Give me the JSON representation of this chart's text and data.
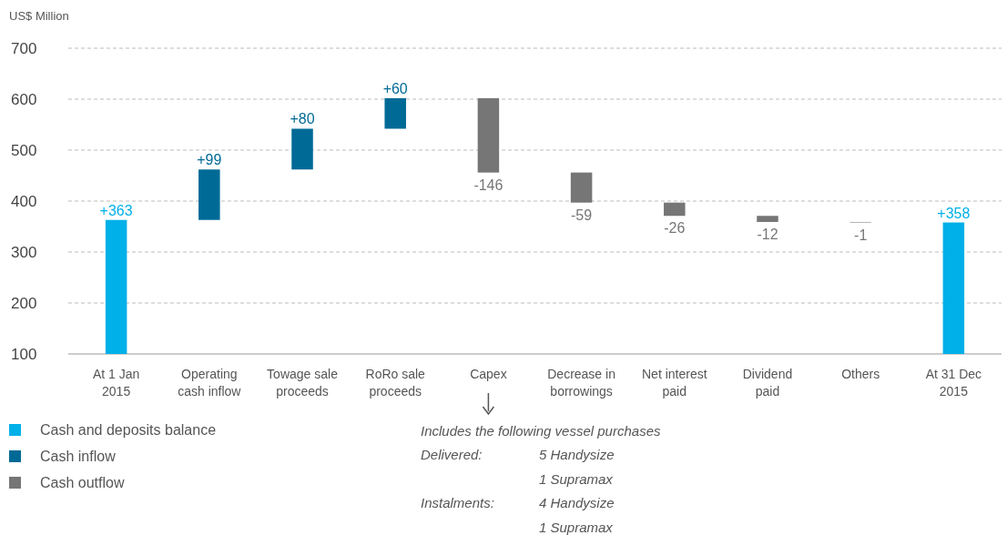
{
  "chart_data": {
    "type": "bar",
    "ylabel": "US$ Million",
    "categories": [
      "At 1 Jan 2015",
      "Operating cash inflow",
      "Towage sale proceeds",
      "RoRo sale proceeds",
      "Capex",
      "Decrease in borrowings",
      "Net interest paid",
      "Dividend paid",
      "Others",
      "At 31 Dec 2015"
    ],
    "series": [
      {
        "name": "Cash and deposits balance",
        "color": "#00b0e8",
        "values": [
          363,
          null,
          null,
          null,
          null,
          null,
          null,
          null,
          null,
          358
        ]
      },
      {
        "name": "Cash inflow",
        "color": "#006a96",
        "values": [
          null,
          99,
          80,
          60,
          null,
          null,
          null,
          null,
          null,
          null
        ],
        "base": [
          null,
          363,
          462,
          542,
          null,
          null,
          null,
          null,
          null,
          null
        ]
      },
      {
        "name": "Cash outflow",
        "color": "#767676",
        "values": [
          null,
          null,
          null,
          null,
          -146,
          -59,
          -26,
          -12,
          -1,
          null
        ],
        "base": [
          null,
          null,
          null,
          null,
          602,
          456,
          397,
          371,
          359,
          null
        ]
      }
    ],
    "value_labels": [
      "+363",
      "+99",
      "+80",
      "+60",
      "-146",
      "-59",
      "-26",
      "-12",
      "-1",
      "+358"
    ],
    "ylim": [
      100,
      700
    ],
    "yticks": [
      100,
      200,
      300,
      400,
      500,
      600,
      700
    ],
    "grid": "y",
    "legend": "bottom left",
    "annotations": [
      "Includes the following vessel purchases",
      "Delivered:",
      "5 Handysize",
      "1 Supramax",
      "Instalments:",
      "4 Handysize",
      "1 Supramax"
    ]
  }
}
